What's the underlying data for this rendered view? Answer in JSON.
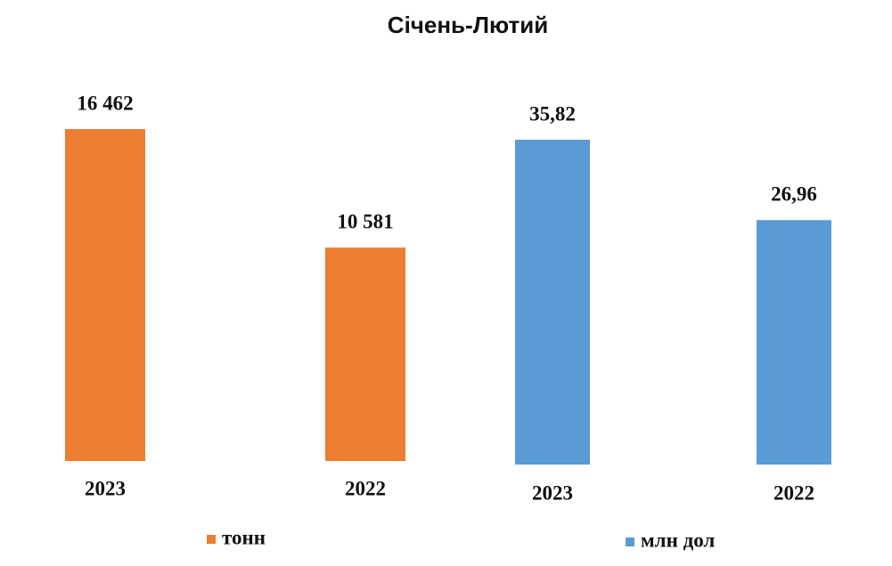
{
  "title": "Січень-Лютий",
  "chart_data": [
    {
      "type": "bar",
      "categories": [
        "2023",
        "2022"
      ],
      "series": [
        {
          "name": "тонн",
          "color": "#ed7d31",
          "values": [
            16462,
            10581
          ],
          "value_labels": [
            "16 462",
            "10 581"
          ]
        }
      ]
    },
    {
      "type": "bar",
      "categories": [
        "2023",
        "2022"
      ],
      "series": [
        {
          "name": "млн дол",
          "color": "#5b9bd5",
          "values": [
            35.82,
            26.96
          ],
          "value_labels": [
            "35,82",
            "26,96"
          ]
        }
      ]
    }
  ]
}
